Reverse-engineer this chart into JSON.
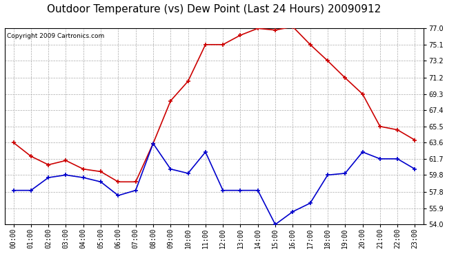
{
  "title": "Outdoor Temperature (vs) Dew Point (Last 24 Hours) 20090912",
  "copyright": "Copyright 2009 Cartronics.com",
  "hours": [
    "00:00",
    "01:00",
    "02:00",
    "03:00",
    "04:00",
    "05:00",
    "06:00",
    "07:00",
    "08:00",
    "09:00",
    "10:00",
    "11:00",
    "12:00",
    "13:00",
    "14:00",
    "15:00",
    "16:00",
    "17:00",
    "18:00",
    "19:00",
    "20:00",
    "21:00",
    "22:00",
    "23:00"
  ],
  "temp": [
    63.6,
    62.0,
    61.0,
    61.5,
    60.5,
    60.2,
    59.0,
    59.0,
    63.5,
    68.5,
    70.8,
    75.1,
    75.1,
    76.2,
    77.0,
    76.8,
    77.2,
    75.1,
    73.2,
    71.2,
    69.3,
    65.5,
    65.1,
    63.9
  ],
  "dew": [
    58.0,
    58.0,
    59.5,
    59.8,
    59.5,
    59.0,
    57.4,
    58.0,
    63.5,
    60.5,
    60.0,
    62.5,
    58.0,
    58.0,
    58.0,
    54.0,
    55.5,
    56.5,
    59.8,
    60.0,
    62.5,
    61.7,
    61.7,
    60.5
  ],
  "temp_color": "#cc0000",
  "dew_color": "#0000cc",
  "bg_color": "#ffffff",
  "plot_bg": "#ffffff",
  "grid_color": "#aaaaaa",
  "yticks": [
    54.0,
    55.9,
    57.8,
    59.8,
    61.7,
    63.6,
    65.5,
    67.4,
    69.3,
    71.2,
    73.2,
    75.1,
    77.0
  ],
  "ymin": 54.0,
  "ymax": 77.0,
  "title_fontsize": 11,
  "tick_fontsize": 7,
  "copyright_fontsize": 6.5
}
